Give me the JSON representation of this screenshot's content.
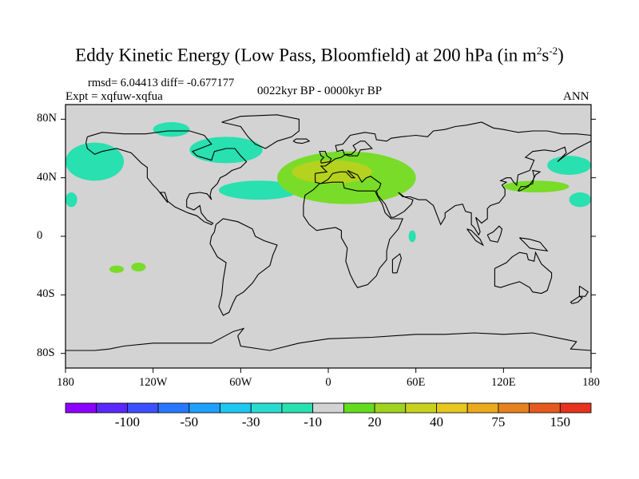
{
  "title": {
    "main": "Eddy Kinetic Energy (Low Pass, Bloomfield) at 200 hPa (in m",
    "sup1": "2",
    "mid": "s",
    "sup2": "-2",
    "end": ")"
  },
  "stats": "rmsd= 6.04413 diff= -0.677177",
  "experiment": "Expt = xqfuw-xqfua",
  "period": "0022kyr BP - 0000kyr BP",
  "season": "ANN",
  "map": {
    "lon_range": [
      -180,
      180
    ],
    "lat_range": [
      -90,
      90
    ],
    "land_color": "#d3d3d3",
    "y_ticks": [
      {
        "label": "80N",
        "lat": 80
      },
      {
        "label": "40N",
        "lat": 40
      },
      {
        "label": "0",
        "lat": 0
      },
      {
        "label": "40S",
        "lat": -40
      },
      {
        "label": "80S",
        "lat": -80
      }
    ],
    "x_ticks": [
      {
        "label": "180",
        "lon": -180
      },
      {
        "label": "120W",
        "lon": -120
      },
      {
        "label": "60W",
        "lon": -60
      },
      {
        "label": "0",
        "lon": 0
      },
      {
        "label": "60E",
        "lon": 60
      },
      {
        "label": "120E",
        "lon": 120
      },
      {
        "label": "180",
        "lon": 180
      }
    ],
    "anomaly_regions": [
      {
        "name": "north-pacific-east",
        "color": "#28e0b0",
        "lon": [
          -180,
          -140
        ],
        "lat": [
          38,
          64
        ]
      },
      {
        "name": "north-pacific-west",
        "color": "#28e0b0",
        "lon": [
          150,
          180
        ],
        "lat": [
          42,
          55
        ]
      },
      {
        "name": "subtropical-pacific-east",
        "color": "#28e0b0",
        "lon": [
          -180,
          -172
        ],
        "lat": [
          20,
          30
        ]
      },
      {
        "name": "subtropical-pacific-west",
        "color": "#28e0b0",
        "lon": [
          165,
          180
        ],
        "lat": [
          20,
          30
        ]
      },
      {
        "name": "labrador",
        "color": "#28e0b0",
        "lon": [
          -95,
          -45
        ],
        "lat": [
          50,
          68
        ]
      },
      {
        "name": "arctic-canada",
        "color": "#28e0b0",
        "lon": [
          -120,
          -95
        ],
        "lat": [
          68,
          78
        ]
      },
      {
        "name": "north-atlantic-west",
        "color": "#28e0b0",
        "lon": [
          -75,
          -20
        ],
        "lat": [
          25,
          38
        ]
      },
      {
        "name": "europe-positive",
        "color": "#78dc28",
        "lon": [
          -35,
          60
        ],
        "lat": [
          22,
          58
        ]
      },
      {
        "name": "europe-core",
        "color": "#b4d21e",
        "lon": [
          -25,
          30
        ],
        "lat": [
          36,
          52
        ]
      },
      {
        "name": "east-asia",
        "color": "#78dc28",
        "lon": [
          120,
          165
        ],
        "lat": [
          30,
          38
        ]
      },
      {
        "name": "south-pacific-1",
        "color": "#78dc28",
        "lon": [
          -150,
          -140
        ],
        "lat": [
          -25,
          -20
        ]
      },
      {
        "name": "south-pacific-2",
        "color": "#78dc28",
        "lon": [
          -135,
          -125
        ],
        "lat": [
          -24,
          -18
        ]
      },
      {
        "name": "indian-ocean",
        "color": "#28e0b0",
        "lon": [
          55,
          60
        ],
        "lat": [
          -4,
          4
        ]
      }
    ]
  },
  "colorbar": {
    "colors": [
      "#8c00ff",
      "#5a28ff",
      "#3c50ff",
      "#2878ff",
      "#1ea0ff",
      "#1ec8f0",
      "#28dcd2",
      "#28e0b0",
      "#d3d3d3",
      "#64dc1e",
      "#a0d21e",
      "#c8d21e",
      "#e6c81e",
      "#ebaa1e",
      "#e6821e",
      "#e65a1e",
      "#e6321e"
    ],
    "labels": [
      {
        "text": "-100",
        "index": 2
      },
      {
        "text": "-50",
        "index": 4
      },
      {
        "text": "-30",
        "index": 6
      },
      {
        "text": "-10",
        "index": 8
      },
      {
        "text": "20",
        "index": 10
      },
      {
        "text": "40",
        "index": 12
      },
      {
        "text": "75",
        "index": 14
      },
      {
        "text": "150",
        "index": 16
      }
    ]
  }
}
